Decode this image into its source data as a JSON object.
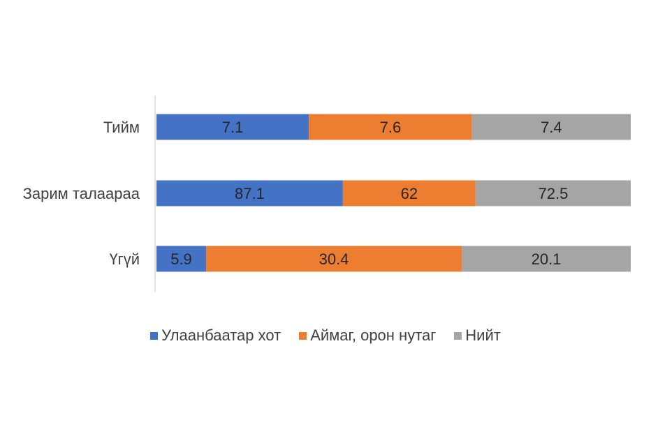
{
  "chart_data": {
    "type": "bar",
    "orientation": "horizontal",
    "stacked": true,
    "categories": [
      "Тийм",
      "Зарим талаараа",
      "Үгүй"
    ],
    "series": [
      {
        "name": "Улаанбаатар хот",
        "color": "#4472C4",
        "values": [
          7.1,
          87.1,
          5.9
        ]
      },
      {
        "name": "Аймаг, орон нутаг",
        "color": "#ED7D31",
        "values": [
          7.6,
          62,
          30.4
        ]
      },
      {
        "name": "Нийт",
        "color": "#A5A5A5",
        "values": [
          7.4,
          72.5,
          20.1
        ]
      }
    ],
    "data_labels": true,
    "grid": false,
    "legend_position": "bottom"
  }
}
